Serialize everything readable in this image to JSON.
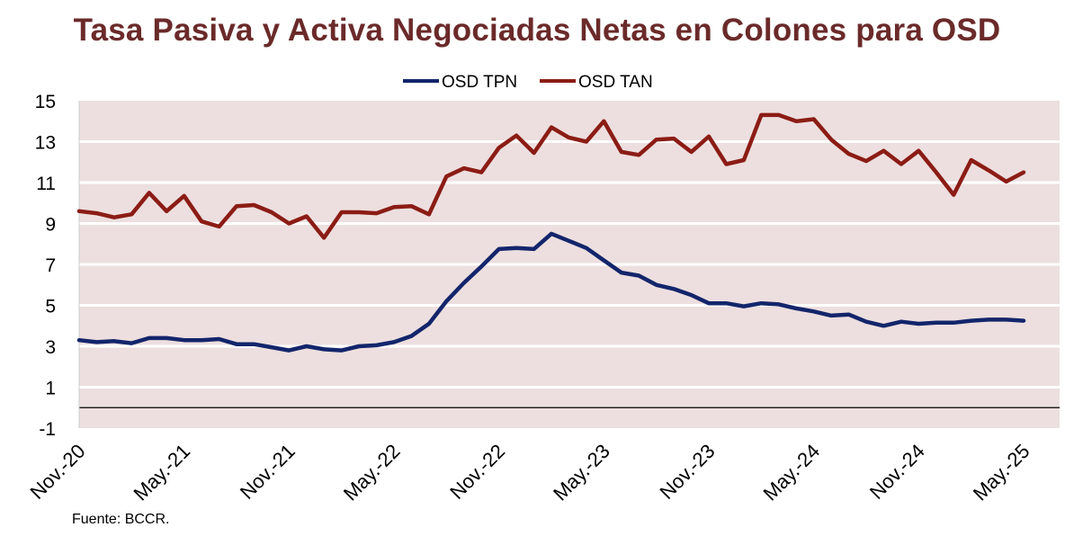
{
  "chart_data": {
    "type": "line",
    "title": "Tasa Pasiva y Activa Negociadas Netas en Colones para OSD",
    "source": "Fuente: BCCR.",
    "ylim": [
      -1,
      15
    ],
    "y_ticks": [
      -1,
      1,
      3,
      5,
      7,
      9,
      11,
      13,
      15
    ],
    "x_tick_labels": [
      "Nov.-20",
      "May.-21",
      "Nov.-21",
      "May.-22",
      "Nov.-22",
      "May.-23",
      "Nov.-23",
      "May.-24",
      "Nov.-24",
      "May.-25"
    ],
    "grid": true,
    "legend_position": "top",
    "colors": {
      "plot_bg": "#eddfdf",
      "tpn": "#13256b",
      "tan": "#8b1c15",
      "title": "#6b2a2a"
    },
    "x": [
      "Nov.-20",
      "Dec.-20",
      "Jan.-21",
      "Feb.-21",
      "Mar.-21",
      "Apr.-21",
      "May.-21",
      "Jun.-21",
      "Jul.-21",
      "Aug.-21",
      "Sep.-21",
      "Oct.-21",
      "Nov.-21",
      "Dec.-21",
      "Jan.-22",
      "Feb.-22",
      "Mar.-22",
      "Apr.-22",
      "May.-22",
      "Jun.-22",
      "Jul.-22",
      "Aug.-22",
      "Sep.-22",
      "Oct.-22",
      "Nov.-22",
      "Dec.-22",
      "Jan.-23",
      "Feb.-23",
      "Mar.-23",
      "Apr.-23",
      "May.-23",
      "Jun.-23",
      "Jul.-23",
      "Aug.-23",
      "Sep.-23",
      "Oct.-23",
      "Nov.-23",
      "Dec.-23",
      "Jan.-24",
      "Feb.-24",
      "Mar.-24",
      "Apr.-24",
      "May.-24",
      "Jun.-24",
      "Jul.-24",
      "Aug.-24",
      "Sep.-24",
      "Oct.-24",
      "Nov.-24",
      "Dec.-24",
      "Jan.-25",
      "Feb.-25",
      "Mar.-25",
      "Apr.-25",
      "May.-25"
    ],
    "series": [
      {
        "name": "OSD TPN",
        "values": [
          3.3,
          3.2,
          3.25,
          3.15,
          3.4,
          3.4,
          3.3,
          3.3,
          3.35,
          3.1,
          3.1,
          2.95,
          2.8,
          3.0,
          2.85,
          2.8,
          3.0,
          3.05,
          3.2,
          3.5,
          4.1,
          5.2,
          6.1,
          6.9,
          7.75,
          7.8,
          7.75,
          8.5,
          8.15,
          7.8,
          7.2,
          6.6,
          6.45,
          6.0,
          5.8,
          5.5,
          5.1,
          5.1,
          4.95,
          5.1,
          5.05,
          4.85,
          4.7,
          4.5,
          4.55,
          4.2,
          4.0,
          4.2,
          4.1,
          4.15,
          4.15,
          4.25,
          4.3,
          4.3,
          4.25
        ]
      },
      {
        "name": "OSD TAN",
        "values": [
          9.6,
          9.5,
          9.3,
          9.45,
          10.5,
          9.6,
          10.35,
          9.1,
          8.85,
          9.85,
          9.9,
          9.55,
          9.0,
          9.35,
          8.3,
          9.55,
          9.55,
          9.5,
          9.8,
          9.85,
          9.45,
          11.3,
          11.7,
          11.5,
          12.7,
          13.3,
          12.45,
          13.7,
          13.2,
          13.0,
          14.0,
          12.5,
          12.35,
          13.1,
          13.15,
          12.5,
          13.25,
          11.9,
          12.1,
          14.3,
          14.3,
          14.0,
          14.1,
          13.1,
          12.4,
          12.05,
          12.55,
          11.9,
          12.55,
          11.5,
          10.4,
          12.1,
          11.6,
          11.05,
          11.5
        ]
      }
    ]
  }
}
